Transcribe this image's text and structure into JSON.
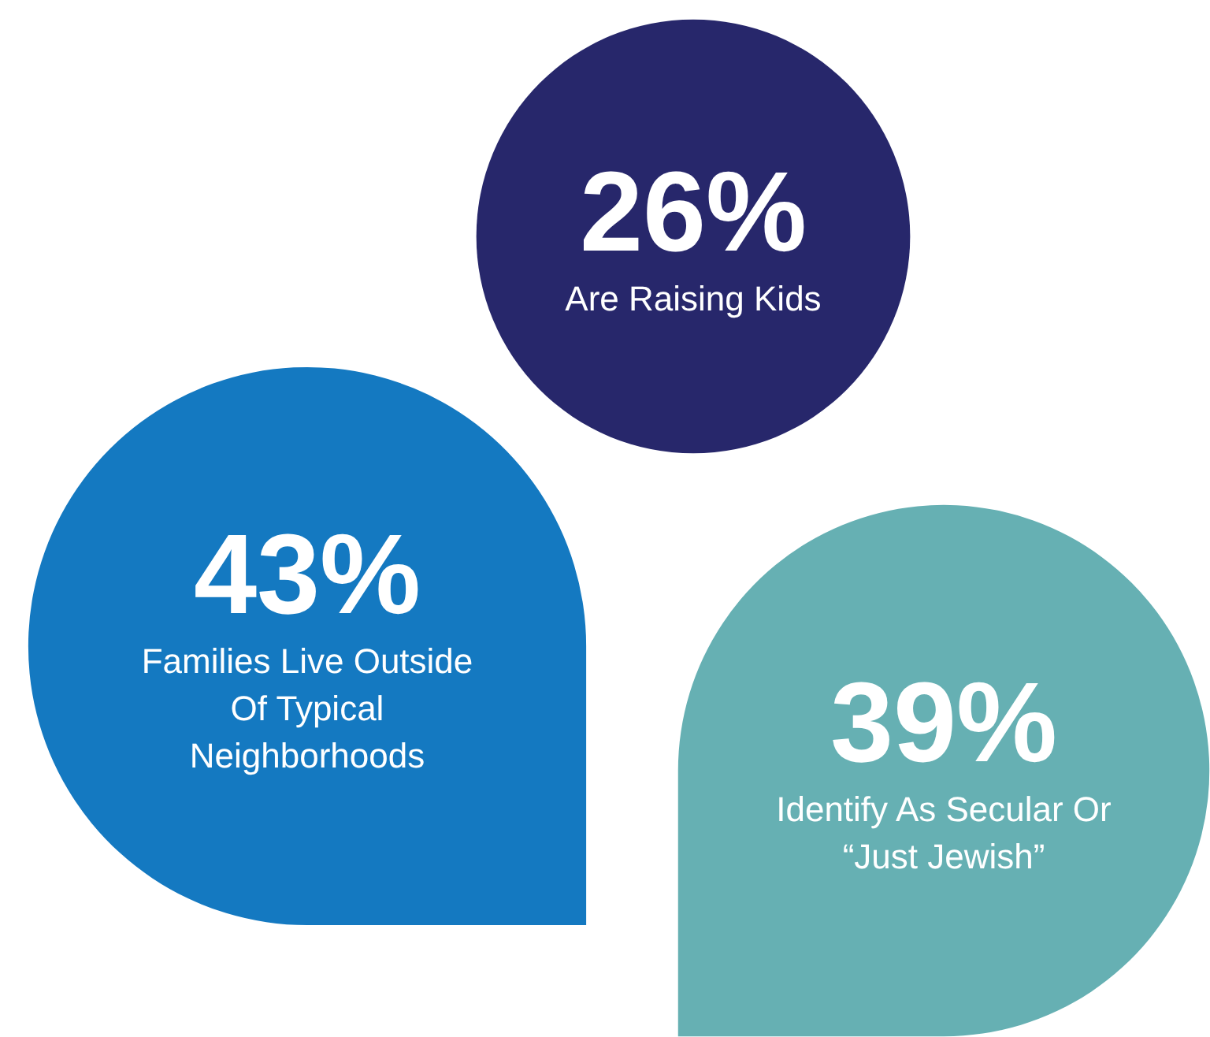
{
  "chart_data": {
    "type": "other",
    "categories": [
      "Are Raising Kids",
      "Families Live Outside Of Typical Neighborhoods",
      "Identify As Secular Or “Just Jewish”"
    ],
    "values": [
      26,
      43,
      39
    ],
    "value_labels": [
      "26%",
      "43%",
      "39%"
    ],
    "colors": [
      "#27276b",
      "#1479c1",
      "#66b0b3"
    ]
  }
}
